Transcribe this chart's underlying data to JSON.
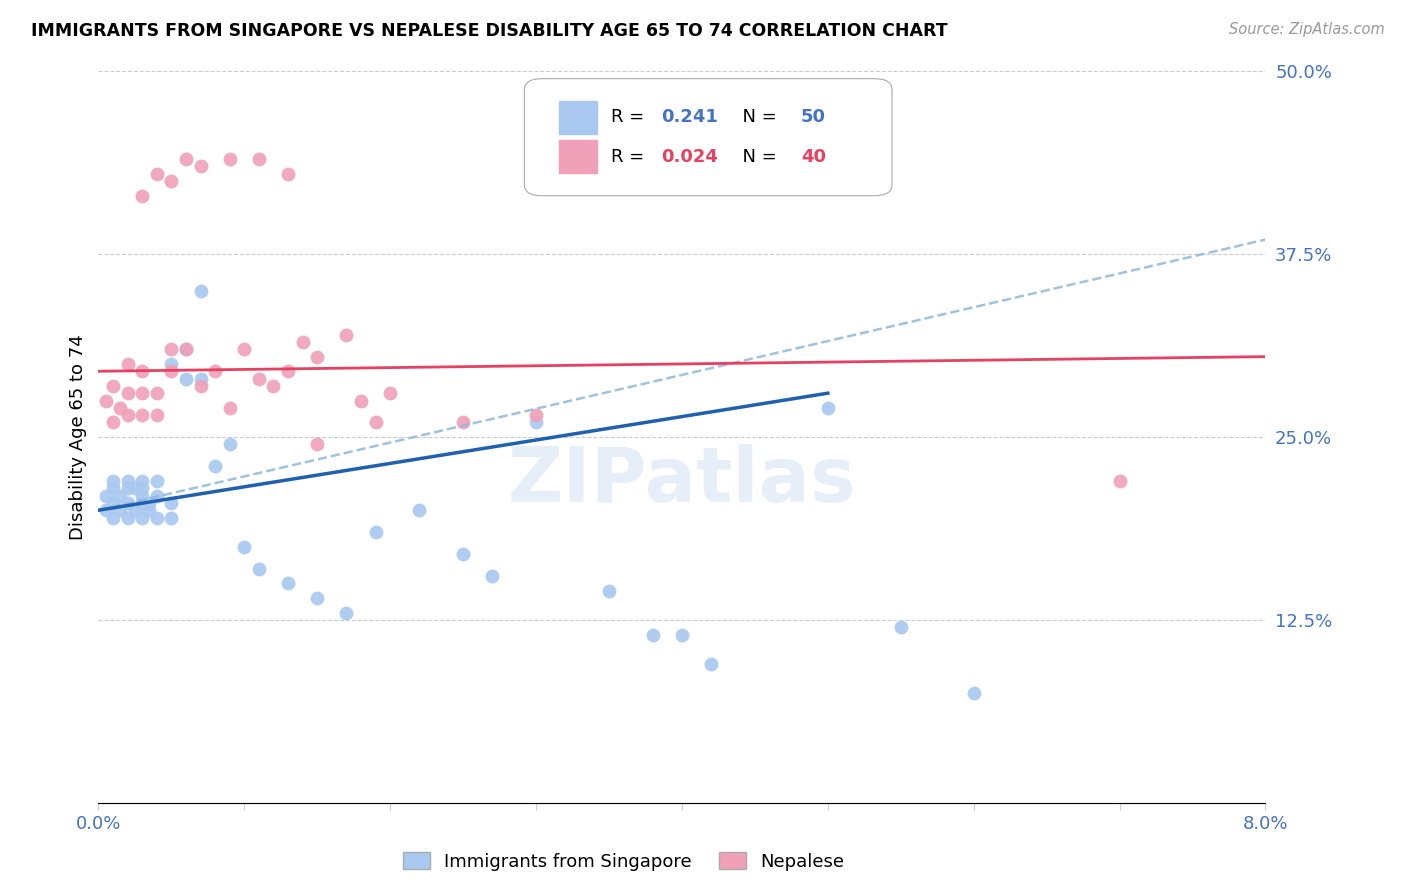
{
  "title": "IMMIGRANTS FROM SINGAPORE VS NEPALESE DISABILITY AGE 65 TO 74 CORRELATION CHART",
  "source": "Source: ZipAtlas.com",
  "ylabel": "Disability Age 65 to 74",
  "xmin": 0.0,
  "xmax": 0.08,
  "ymin": 0.0,
  "ymax": 0.5,
  "yticks": [
    0.0,
    0.125,
    0.25,
    0.375,
    0.5
  ],
  "ytick_labels": [
    "",
    "12.5%",
    "25.0%",
    "37.5%",
    "50.0%"
  ],
  "xticks": [
    0.0,
    0.01,
    0.02,
    0.03,
    0.04,
    0.05,
    0.06,
    0.07,
    0.08
  ],
  "blue_color": "#a8c8f0",
  "pink_color": "#f0a0b8",
  "line_blue_solid": "#2060b0",
  "line_pink_solid": "#e84060",
  "line_blue_dashed": "#90b8d8",
  "watermark": "ZIPatlas",
  "singapore_x": [
    0.0005,
    0.0005,
    0.001,
    0.001,
    0.001,
    0.001,
    0.0015,
    0.0015,
    0.002,
    0.002,
    0.002,
    0.002,
    0.0025,
    0.0025,
    0.003,
    0.003,
    0.003,
    0.003,
    0.003,
    0.0035,
    0.0035,
    0.004,
    0.004,
    0.004,
    0.005,
    0.005,
    0.005,
    0.006,
    0.006,
    0.007,
    0.007,
    0.008,
    0.009,
    0.01,
    0.011,
    0.013,
    0.015,
    0.017,
    0.019,
    0.022,
    0.025,
    0.027,
    0.03,
    0.035,
    0.038,
    0.04,
    0.042,
    0.05,
    0.055,
    0.06
  ],
  "singapore_y": [
    0.2,
    0.21,
    0.195,
    0.205,
    0.215,
    0.22,
    0.2,
    0.21,
    0.195,
    0.205,
    0.215,
    0.22,
    0.2,
    0.215,
    0.195,
    0.205,
    0.21,
    0.215,
    0.22,
    0.2,
    0.205,
    0.195,
    0.21,
    0.22,
    0.195,
    0.205,
    0.3,
    0.29,
    0.31,
    0.29,
    0.35,
    0.23,
    0.245,
    0.175,
    0.16,
    0.15,
    0.14,
    0.13,
    0.185,
    0.2,
    0.17,
    0.155,
    0.26,
    0.145,
    0.115,
    0.115,
    0.095,
    0.27,
    0.12,
    0.075
  ],
  "nepalese_x": [
    0.0005,
    0.001,
    0.001,
    0.0015,
    0.002,
    0.002,
    0.002,
    0.003,
    0.003,
    0.003,
    0.004,
    0.004,
    0.005,
    0.005,
    0.006,
    0.007,
    0.008,
    0.009,
    0.01,
    0.011,
    0.012,
    0.013,
    0.014,
    0.015,
    0.017,
    0.018,
    0.019,
    0.02,
    0.025,
    0.03,
    0.003,
    0.004,
    0.005,
    0.006,
    0.007,
    0.009,
    0.011,
    0.013,
    0.07,
    0.015
  ],
  "nepalese_y": [
    0.275,
    0.26,
    0.285,
    0.27,
    0.265,
    0.28,
    0.3,
    0.265,
    0.28,
    0.295,
    0.265,
    0.28,
    0.295,
    0.31,
    0.31,
    0.285,
    0.295,
    0.27,
    0.31,
    0.29,
    0.285,
    0.295,
    0.315,
    0.305,
    0.32,
    0.275,
    0.26,
    0.28,
    0.26,
    0.265,
    0.415,
    0.43,
    0.425,
    0.44,
    0.435,
    0.44,
    0.44,
    0.43,
    0.22,
    0.245
  ],
  "blue_line_x0": 0.0,
  "blue_line_y0": 0.2,
  "blue_line_x1": 0.05,
  "blue_line_y1": 0.28,
  "pink_line_x0": 0.0,
  "pink_line_y0": 0.295,
  "pink_line_x1": 0.08,
  "pink_line_y1": 0.305,
  "dashed_line_x0": 0.0,
  "dashed_line_y0": 0.2,
  "dashed_line_x1": 0.08,
  "dashed_line_y1": 0.385
}
